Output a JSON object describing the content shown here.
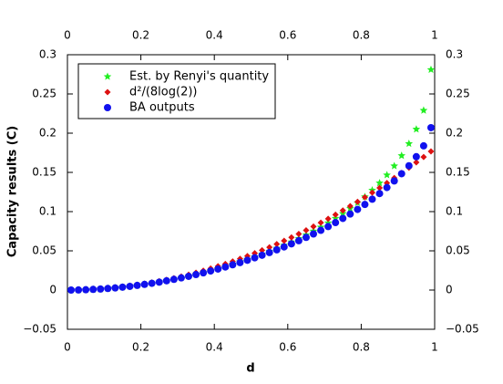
{
  "chart_data": {
    "type": "scatter",
    "xlabel": "d",
    "ylabel": "Capacity results (C)",
    "x": [
      0.01,
      0.03,
      0.05,
      0.07,
      0.09,
      0.11,
      0.13,
      0.15,
      0.17,
      0.19,
      0.21,
      0.23,
      0.25,
      0.27,
      0.29,
      0.31,
      0.33,
      0.35,
      0.37,
      0.39,
      0.41,
      0.43,
      0.45,
      0.47,
      0.49,
      0.51,
      0.53,
      0.55,
      0.57,
      0.59,
      0.61,
      0.63,
      0.65,
      0.67,
      0.69,
      0.71,
      0.73,
      0.75,
      0.77,
      0.79,
      0.81,
      0.83,
      0.85,
      0.87,
      0.89,
      0.91,
      0.93,
      0.95,
      0.97,
      0.99
    ],
    "series": [
      {
        "name": "Est. by Renyi's quantity",
        "color": "#22ee22",
        "marker": "star",
        "values": [
          0.0,
          0.0001,
          0.0004,
          0.0008,
          0.0013,
          0.002,
          0.0028,
          0.0037,
          0.0048,
          0.006,
          0.0073,
          0.0087,
          0.0103,
          0.012,
          0.0138,
          0.0158,
          0.0179,
          0.0201,
          0.0224,
          0.0249,
          0.0275,
          0.0302,
          0.0331,
          0.0361,
          0.0392,
          0.0425,
          0.0459,
          0.0495,
          0.0533,
          0.0572,
          0.0613,
          0.0657,
          0.0703,
          0.0751,
          0.0802,
          0.0856,
          0.0914,
          0.0975,
          0.1041,
          0.1112,
          0.1189,
          0.1273,
          0.1365,
          0.1467,
          0.1582,
          0.1713,
          0.1866,
          0.205,
          0.229,
          0.281
        ]
      },
      {
        "name": "d²/(8log(2))",
        "color": "#dd1111",
        "marker": "diamond",
        "values": [
          2e-05,
          0.00016,
          0.00045,
          0.00088,
          0.00146,
          0.00218,
          0.00305,
          0.00406,
          0.00521,
          0.00651,
          0.00795,
          0.00954,
          0.01127,
          0.01315,
          0.01517,
          0.01733,
          0.01964,
          0.02209,
          0.02469,
          0.02743,
          0.03032,
          0.03335,
          0.03652,
          0.03984,
          0.0433,
          0.04691,
          0.05066,
          0.05455,
          0.05859,
          0.06278,
          0.0671,
          0.07158,
          0.07619,
          0.08095,
          0.08586,
          0.09091,
          0.0961,
          0.10144,
          0.10692,
          0.11255,
          0.11832,
          0.12424,
          0.1303,
          0.1365,
          0.14285,
          0.14934,
          0.15598,
          0.16276,
          0.16968,
          0.17675
        ]
      },
      {
        "name": "BA outputs",
        "color": "#1111ee",
        "marker": "circle",
        "values": [
          0.0,
          0.0001,
          0.0004,
          0.0008,
          0.0013,
          0.002,
          0.0027,
          0.0037,
          0.0047,
          0.0059,
          0.0072,
          0.0086,
          0.0101,
          0.0118,
          0.0136,
          0.0155,
          0.0175,
          0.0197,
          0.0219,
          0.0243,
          0.0268,
          0.0294,
          0.0322,
          0.035,
          0.038,
          0.0411,
          0.0444,
          0.0478,
          0.0513,
          0.055,
          0.0589,
          0.0629,
          0.0671,
          0.0715,
          0.0761,
          0.0809,
          0.086,
          0.0913,
          0.0969,
          0.1028,
          0.1091,
          0.1158,
          0.123,
          0.1307,
          0.1391,
          0.1483,
          0.1585,
          0.17,
          0.1838,
          0.207
        ]
      }
    ],
    "xlim": [
      0,
      1
    ],
    "xticks": [
      0,
      0.2,
      0.4,
      0.6,
      0.8,
      1
    ],
    "ylim": [
      -0.05,
      0.3
    ],
    "yticks": [
      {
        "value": -0.05,
        "label": "−0.05"
      },
      0,
      0.05,
      0.1,
      0.15,
      0.2,
      0.25,
      0.3
    ],
    "legend": "upper left"
  }
}
